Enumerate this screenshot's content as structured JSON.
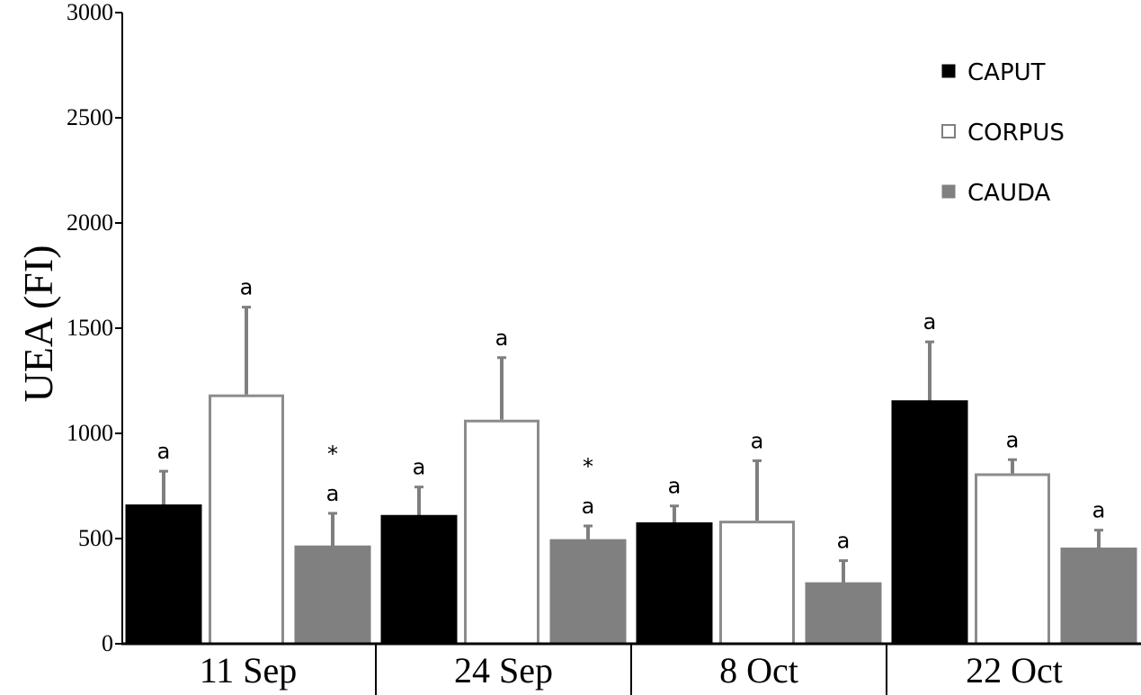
{
  "chart_data": {
    "type": "bar",
    "ylabel": "UEA (FI)",
    "xlabel": "",
    "ylim": [
      0,
      3000
    ],
    "yticks": [
      "0",
      "500",
      "1000",
      "1500",
      "2000",
      "2500",
      "3000"
    ],
    "ytick_values": [
      0,
      500,
      1000,
      1500,
      2000,
      2500,
      3000
    ],
    "categories": [
      "11 Sep",
      "24 Sep",
      "8 Oct",
      "22 Oct"
    ],
    "series": [
      {
        "name": "CAPUT",
        "fill": "#000000",
        "stroke": "#000000",
        "values": [
          660,
          610,
          575,
          1155
        ],
        "errors": [
          160,
          135,
          80,
          280
        ],
        "labels": [
          [
            "a"
          ],
          [
            "a"
          ],
          [
            "a"
          ],
          [
            "a"
          ]
        ]
      },
      {
        "name": "CORPUS",
        "fill": "#ffffff",
        "stroke": "#8c8c8c",
        "values": [
          1185,
          1065,
          585,
          810
        ],
        "errors": [
          415,
          295,
          285,
          65
        ],
        "labels": [
          [
            "a"
          ],
          [
            "a"
          ],
          [
            "a"
          ],
          [
            "a"
          ]
        ]
      },
      {
        "name": "CAUDA",
        "fill": "#808080",
        "stroke": "#808080",
        "values": [
          465,
          495,
          290,
          455
        ],
        "errors": [
          155,
          65,
          105,
          85
        ],
        "labels": [
          [
            "a",
            "*"
          ],
          [
            "a",
            "*"
          ],
          [
            "a"
          ],
          [
            "a"
          ]
        ]
      }
    ],
    "legend": {
      "position": "top-right"
    },
    "grid": false,
    "colors": {
      "axis": "#000000",
      "error_bar": "#7f7f7f"
    }
  }
}
